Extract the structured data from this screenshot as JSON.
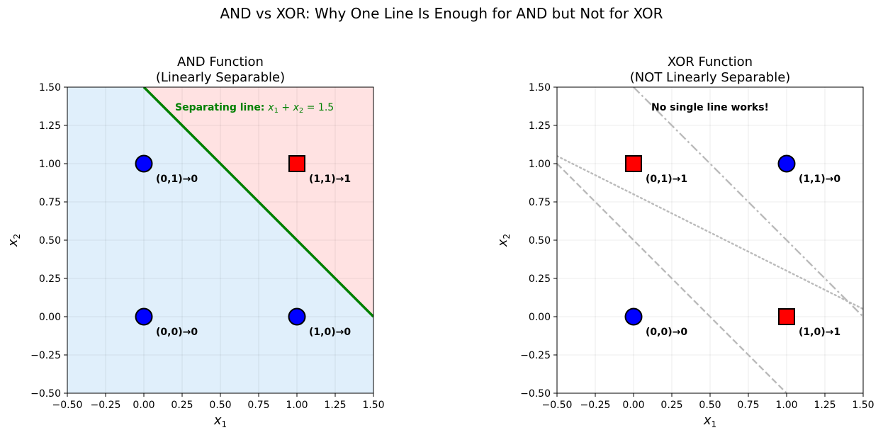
{
  "suptitle": "AND vs XOR: Why One Line Is Enough for AND but Not for XOR",
  "colors": {
    "class0": "#0000ff",
    "class1": "#ff0000",
    "region0": "#e0effb",
    "region1": "#ffe2e2",
    "separator": "#008000",
    "failed_lines": "#bbbbbb",
    "warning_text": "#ff0000",
    "grid": "#e6e6e6"
  },
  "chart_data": [
    {
      "type": "scatter",
      "title_line1": "AND Function",
      "title_line2": "(Linearly Separable)",
      "xlabel": "x",
      "xlabel_sub": "1",
      "ylabel": "x",
      "ylabel_sub": "2",
      "xlim": [
        -0.5,
        1.5
      ],
      "ylim": [
        -0.5,
        1.5
      ],
      "xticks": [
        -0.5,
        -0.25,
        0.0,
        0.25,
        0.5,
        0.75,
        1.0,
        1.25,
        1.5
      ],
      "yticks": [
        -0.5,
        -0.25,
        0.0,
        0.25,
        0.5,
        0.75,
        1.0,
        1.25,
        1.5
      ],
      "xtick_labels": [
        "−0.50",
        "−0.25",
        "0.00",
        "0.25",
        "0.50",
        "0.75",
        "1.00",
        "1.25",
        "1.50"
      ],
      "ytick_labels": [
        "−0.50",
        "−0.25",
        "0.00",
        "0.25",
        "0.50",
        "0.75",
        "1.00",
        "1.25",
        "1.50"
      ],
      "grid": true,
      "shaded_regions": true,
      "points": [
        {
          "x": 0,
          "y": 0,
          "output": 0,
          "marker": "circle",
          "label": "(0,0)→0"
        },
        {
          "x": 0,
          "y": 1,
          "output": 0,
          "marker": "circle",
          "label": "(0,1)→0"
        },
        {
          "x": 1,
          "y": 0,
          "output": 0,
          "marker": "circle",
          "label": "(1,0)→0"
        },
        {
          "x": 1,
          "y": 1,
          "output": 1,
          "marker": "square",
          "label": "(1,1)→1"
        }
      ],
      "lines": [
        {
          "x": [
            0.0,
            1.5
          ],
          "y": [
            1.5,
            0.0
          ],
          "style": "solid",
          "role": "separator"
        }
      ],
      "annotation": {
        "prefix": "Separating line: ",
        "math_a": "x",
        "math_a_sub": "1",
        "math_plus": " + ",
        "math_b": "x",
        "math_b_sub": "2",
        "math_eq": " = 1.5",
        "x": 0.2,
        "y": 1.35
      }
    },
    {
      "type": "scatter",
      "title_line1": "XOR Function",
      "title_line2": "(NOT Linearly Separable)",
      "xlabel": "x",
      "xlabel_sub": "1",
      "ylabel": "x",
      "ylabel_sub": "2",
      "xlim": [
        -0.5,
        1.5
      ],
      "ylim": [
        -0.5,
        1.5
      ],
      "xticks": [
        -0.5,
        -0.25,
        0.0,
        0.25,
        0.5,
        0.75,
        1.0,
        1.25,
        1.5
      ],
      "yticks": [
        -0.5,
        -0.25,
        0.0,
        0.25,
        0.5,
        0.75,
        1.0,
        1.25,
        1.5
      ],
      "xtick_labels": [
        "−0.50",
        "−0.25",
        "0.00",
        "0.25",
        "0.50",
        "0.75",
        "1.00",
        "1.25",
        "1.50"
      ],
      "ytick_labels": [
        "−0.50",
        "−0.25",
        "0.00",
        "0.25",
        "0.50",
        "0.75",
        "1.00",
        "1.25",
        "1.50"
      ],
      "grid": true,
      "shaded_regions": false,
      "points": [
        {
          "x": 0,
          "y": 0,
          "output": 0,
          "marker": "circle",
          "label": "(0,0)→0"
        },
        {
          "x": 0,
          "y": 1,
          "output": 1,
          "marker": "square",
          "label": "(0,1)→1"
        },
        {
          "x": 1,
          "y": 0,
          "output": 1,
          "marker": "square",
          "label": "(1,0)→1"
        },
        {
          "x": 1,
          "y": 1,
          "output": 0,
          "marker": "circle",
          "label": "(1,1)→0"
        }
      ],
      "lines": [
        {
          "x": [
            -0.5,
            1.0
          ],
          "y": [
            1.0,
            -0.5
          ],
          "style": "dashed",
          "role": "failed"
        },
        {
          "x": [
            -0.5,
            1.5
          ],
          "y": [
            1.05,
            0.05
          ],
          "style": "dotted",
          "role": "failed"
        },
        {
          "x": [
            0.0,
            1.5
          ],
          "y": [
            1.5,
            0.0
          ],
          "style": "dashdot",
          "role": "failed"
        }
      ],
      "annotation": {
        "text": "No single line works!",
        "x": 0.5,
        "y": 1.35
      }
    }
  ]
}
